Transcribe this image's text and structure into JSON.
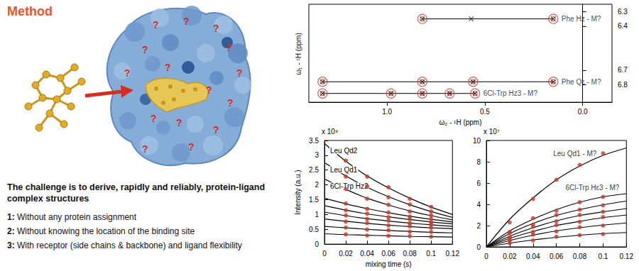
{
  "header": {
    "title": "Method"
  },
  "illustration": {
    "unknown_mark": "?"
  },
  "text": {
    "heading": "The challenge is to derive, rapidly and reliably, protein-ligand complex structures",
    "items": [
      {
        "number": "1:",
        "text": "Without any protein assignment"
      },
      {
        "number": "2:",
        "text": "Without knowing the location of the binding site"
      },
      {
        "number": "3:",
        "text": "With receptor (side chains & backbone) and ligand flexibility"
      }
    ]
  },
  "chart_data": [
    {
      "type": "scatter",
      "x_label": "ω₂ - ¹H (ppm)",
      "y_label": "ω₁ - ¹H (ppm)",
      "xlim": [
        1.4,
        -0.15
      ],
      "xticks": [
        {
          "value": 1,
          "label": "1.0"
        },
        {
          "value": 0.5,
          "label": "0.5"
        },
        {
          "value": 0,
          "label": "0.0"
        }
      ],
      "ylim": [
        6.92,
        6.25
      ],
      "yticks": [
        6.3,
        6.4,
        6.7,
        6.8
      ],
      "grid": false,
      "color": "#c0392b",
      "marker": "circle",
      "series": [
        {
          "name": "Phe Hz - M?",
          "y": 6.35,
          "peaks": [
            0.82,
            0.15
          ],
          "crosses": [
            0.82,
            0.57,
            0.15
          ]
        },
        {
          "name": "Phe Qε - M?",
          "y": 6.78,
          "peaks": [
            1.33,
            0.82,
            0.56,
            0.15
          ],
          "crosses": [
            1.33,
            0.82,
            0.56,
            0.15
          ]
        },
        {
          "name": "6Cl-Trp Hz3 - M?",
          "y": 6.86,
          "peaks": [
            1.33,
            0.98,
            0.82,
            0.68,
            0.55
          ],
          "crosses": [
            1.33,
            0.98,
            0.82,
            0.68,
            0.55
          ]
        }
      ]
    },
    {
      "type": "line",
      "multiplier": "x 10⁹",
      "y_label": "Intensity (a.u.)",
      "x_label": "mixing time (s)",
      "xlim": [
        0,
        0.12
      ],
      "xticks": [
        0,
        0.02,
        0.04,
        0.06,
        0.08,
        0.1,
        0.12
      ],
      "ylim": [
        0,
        3.5
      ],
      "yticks": [
        0,
        0.5,
        1,
        1.5,
        2,
        2.5,
        3,
        3.5
      ],
      "grid": false,
      "color": "#c0392b",
      "marker": "circle",
      "x": [
        0,
        0.02,
        0.04,
        0.06,
        0.08,
        0.1,
        0.12
      ],
      "points_x": [
        0.02,
        0.04,
        0.06,
        0.08,
        0.1
      ],
      "series": [
        {
          "name": "Leu Qd2",
          "curve": [
            3.4,
            2.8,
            2.3,
            1.9,
            1.55,
            1.25,
            1.0
          ],
          "points": [
            2.82,
            2.28,
            1.92,
            1.53,
            1.26
          ]
        },
        {
          "name": "Leu Qd1",
          "curve": [
            2.75,
            2.3,
            1.92,
            1.6,
            1.33,
            1.1,
            0.9
          ],
          "points": [
            2.28,
            1.95,
            1.58,
            1.34,
            1.1
          ]
        },
        {
          "name": "6Cl-Trp Hz2",
          "curve": [
            2.2,
            1.85,
            1.55,
            1.32,
            1.12,
            0.96,
            0.82
          ],
          "points": [
            1.86,
            1.53,
            1.33,
            1.1,
            0.97
          ]
        },
        {
          "curve": [
            1.55,
            1.36,
            1.2,
            1.06,
            0.94,
            0.84,
            0.75
          ],
          "points": [
            1.37,
            1.19,
            1.07,
            0.93,
            0.85
          ]
        },
        {
          "curve": [
            1.3,
            1.15,
            1.02,
            0.92,
            0.83,
            0.75,
            0.68
          ],
          "points": [
            1.14,
            1.03,
            0.91,
            0.84,
            0.74
          ]
        },
        {
          "curve": [
            1.08,
            0.96,
            0.86,
            0.78,
            0.71,
            0.65,
            0.6
          ],
          "points": [
            0.97,
            0.85,
            0.79,
            0.7,
            0.66
          ]
        },
        {
          "curve": [
            0.85,
            0.77,
            0.7,
            0.64,
            0.59,
            0.55,
            0.52
          ],
          "points": [
            0.76,
            0.71,
            0.63,
            0.6,
            0.55
          ]
        },
        {
          "curve": [
            0.6,
            0.55,
            0.5,
            0.46,
            0.43,
            0.4,
            0.38
          ],
          "points": [
            0.56,
            0.49,
            0.47,
            0.42,
            0.41
          ]
        },
        {
          "curve": [
            0.35,
            0.32,
            0.3,
            0.28,
            0.26,
            0.25,
            0.24
          ],
          "points": [
            0.33,
            0.29,
            0.28,
            0.27,
            0.25
          ]
        }
      ]
    },
    {
      "type": "line",
      "multiplier": "x 10⁷",
      "xlim": [
        0,
        0.12
      ],
      "xticks": [
        0,
        0.02,
        0.04,
        0.06,
        0.08,
        0.1,
        0.12
      ],
      "ylim": [
        0,
        10
      ],
      "yticks": [
        0,
        2,
        4,
        6,
        8,
        10
      ],
      "grid": false,
      "color": "#c0392b",
      "marker": "circle",
      "x": [
        0,
        0.02,
        0.04,
        0.06,
        0.08,
        0.1,
        0.12
      ],
      "points_x": [
        0.02,
        0.04,
        0.06,
        0.08,
        0.1
      ],
      "series": [
        {
          "name": "Leu Qd1 - M?",
          "curve": [
            0,
            2.6,
            4.6,
            6.3,
            7.6,
            8.6,
            9.3
          ],
          "points": [
            2.3,
            4.5,
            6.3,
            7.7,
            8.8
          ]
        },
        {
          "name": "6Cl-Trp Hε3 - M?",
          "curve": [
            0,
            1.5,
            2.6,
            3.5,
            4.2,
            4.7,
            5.0
          ],
          "points": [
            1.4,
            2.7,
            3.4,
            4.2,
            4.7
          ]
        },
        {
          "curve": [
            0,
            1.25,
            2.2,
            2.95,
            3.5,
            3.95,
            4.3
          ],
          "points": [
            1.3,
            2.1,
            3.0,
            3.5,
            3.9
          ]
        },
        {
          "curve": [
            0,
            1.0,
            1.8,
            2.45,
            2.95,
            3.3,
            3.6
          ],
          "points": [
            0.9,
            1.9,
            2.4,
            3.0,
            3.3
          ]
        },
        {
          "curve": [
            0,
            0.8,
            1.45,
            2.0,
            2.4,
            2.75,
            3.0
          ],
          "points": [
            0.85,
            1.4,
            2.05,
            2.35,
            2.8
          ]
        },
        {
          "curve": [
            0,
            0.6,
            1.1,
            1.5,
            1.8,
            2.05,
            2.25
          ],
          "points": [
            0.6,
            1.15,
            1.45,
            1.85,
            2.0
          ]
        },
        {
          "curve": [
            0,
            0.35,
            0.65,
            0.9,
            1.1,
            1.25,
            1.35
          ],
          "points": [
            0.35,
            0.6,
            0.95,
            1.1,
            1.2
          ]
        }
      ]
    }
  ]
}
